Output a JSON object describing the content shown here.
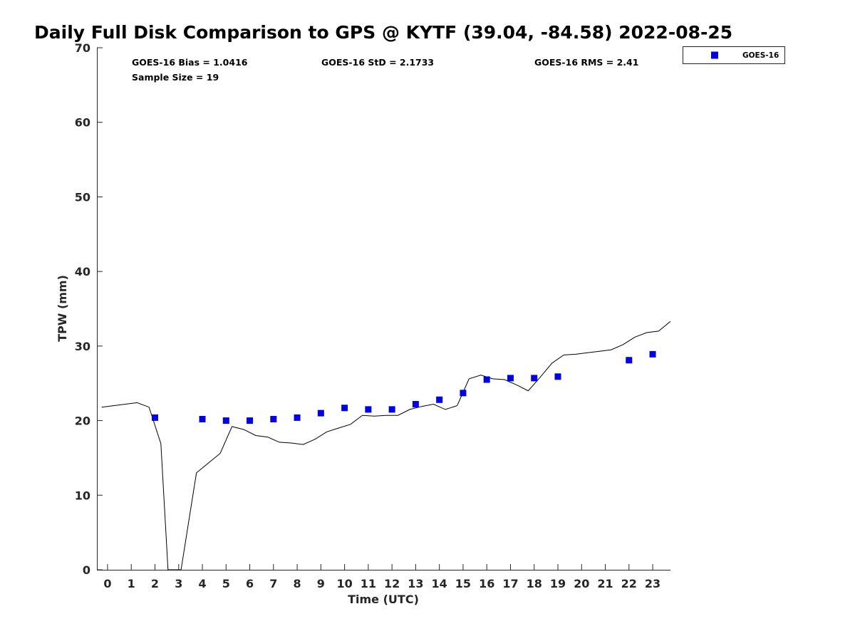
{
  "chart_data": {
    "type": "scatter",
    "title": "Daily Full Disk Comparison to GPS @ KYTF (39.04, -84.58) 2022-08-25",
    "xlabel": "Time (UTC)",
    "ylabel": "TPW (mm)",
    "xlim": [
      -0.45,
      23.75
    ],
    "ylim": [
      0,
      70
    ],
    "x_ticks": [
      0,
      1,
      2,
      3,
      4,
      5,
      6,
      7,
      8,
      9,
      10,
      11,
      12,
      13,
      14,
      15,
      16,
      17,
      18,
      19,
      20,
      21,
      22,
      23
    ],
    "x_tick_labels": [
      "0",
      "1",
      "2",
      "3",
      "4",
      "5",
      "6",
      "7",
      "8",
      "9",
      "10",
      "11",
      "12",
      "13",
      "14",
      "15",
      "16",
      "17",
      "18",
      "19",
      "20",
      "21",
      "22",
      "23"
    ],
    "y_ticks": [
      0,
      10,
      20,
      30,
      40,
      50,
      60,
      70
    ],
    "y_tick_labels": [
      "0",
      "10",
      "20",
      "30",
      "40",
      "50",
      "60",
      "70"
    ],
    "grid": false,
    "legend_position": "top-right",
    "series": [
      {
        "name": "GOES-16",
        "kind": "scatter",
        "marker": "square",
        "color": "#0000e0",
        "x": [
          2,
          4,
          5,
          6,
          7,
          8,
          9,
          10,
          11,
          12,
          13,
          14,
          15,
          16,
          17,
          18,
          19,
          22,
          23
        ],
        "y": [
          20.4,
          20.2,
          20.0,
          20.0,
          20.2,
          20.4,
          21.0,
          21.7,
          21.5,
          21.5,
          22.2,
          22.8,
          23.7,
          25.5,
          25.7,
          25.7,
          25.9,
          28.1,
          28.9
        ]
      },
      {
        "kind": "line",
        "color": "#000000",
        "x": [
          -0.25,
          0.25,
          0.75,
          1.25,
          1.75,
          2.25,
          2.55,
          3.1,
          3.75,
          4.25,
          4.75,
          5.25,
          5.75,
          6.25,
          6.75,
          7.25,
          7.75,
          8.25,
          8.75,
          9.25,
          9.75,
          10.25,
          10.75,
          11.25,
          11.75,
          12.25,
          12.75,
          13.25,
          13.75,
          14.25,
          14.75,
          15.25,
          15.75,
          16.25,
          16.75,
          17.25,
          17.75,
          18.25,
          18.75,
          19.25,
          19.75,
          20.25,
          20.75,
          21.25,
          21.75,
          22.25,
          22.75,
          23.25,
          23.75
        ],
        "y": [
          21.8,
          22.0,
          22.2,
          22.4,
          21.8,
          16.9,
          0,
          0,
          13.0,
          14.3,
          15.6,
          19.2,
          18.8,
          18.0,
          17.8,
          17.1,
          17.0,
          16.8,
          17.5,
          18.5,
          19.0,
          19.5,
          20.7,
          20.6,
          20.7,
          20.7,
          21.5,
          21.9,
          22.2,
          21.5,
          22.0,
          25.6,
          26.1,
          25.6,
          25.5,
          24.8,
          24.0,
          25.8,
          27.7,
          28.8,
          28.9,
          29.1,
          29.3,
          29.5,
          30.2,
          31.2,
          31.8,
          32.0,
          33.3
        ]
      }
    ],
    "annotations": [
      {
        "text": "GOES-16 Bias = 1.0416"
      },
      {
        "text": "Sample Size = 19"
      },
      {
        "text": "GOES-16 StD = 2.1733"
      },
      {
        "text": "GOES-16 RMS = 2.41"
      }
    ]
  }
}
